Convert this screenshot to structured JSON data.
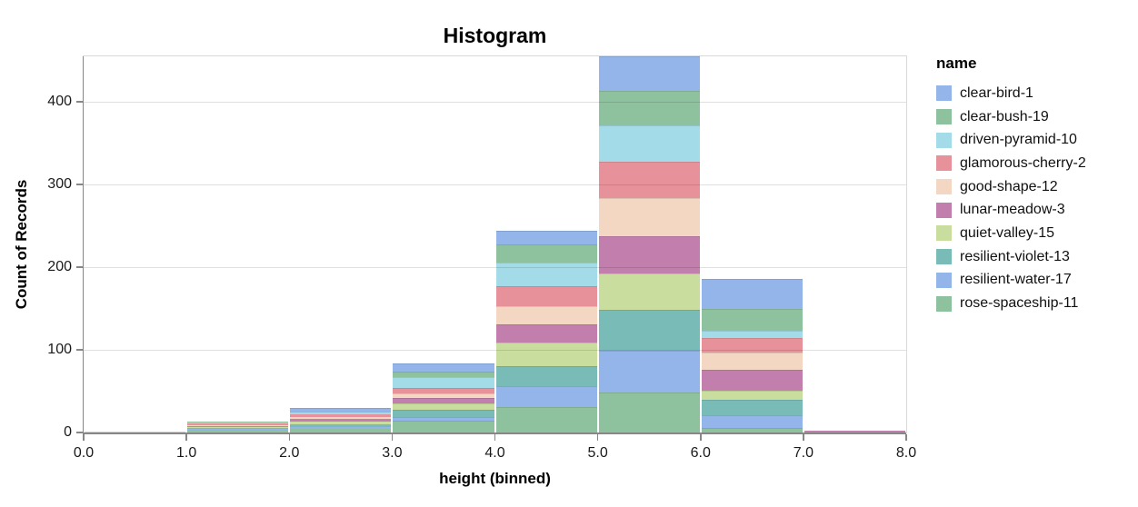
{
  "header": {
    "title": "Histogram"
  },
  "x_axis": {
    "title": "height (binned)",
    "tick_labels": [
      "0.0",
      "1.0",
      "2.0",
      "3.0",
      "4.0",
      "5.0",
      "6.0",
      "7.0",
      "8.0"
    ]
  },
  "y_axis": {
    "title": "Count of Records",
    "tick_values": [
      0,
      100,
      200,
      300,
      400
    ],
    "max": 455
  },
  "legend": {
    "title": "name"
  },
  "chart_data": {
    "type": "bar",
    "subtype": "stacked-histogram",
    "title": "Histogram",
    "xlabel": "height (binned)",
    "ylabel": "Count of Records",
    "xlim": [
      0,
      8
    ],
    "ylim": [
      0,
      455
    ],
    "grid": true,
    "legend_position": "right",
    "bin_edges": [
      0,
      1,
      2,
      3,
      4,
      5,
      6,
      7,
      8
    ],
    "stack_note": "first series renders at top of stack, last series at bottom",
    "series": [
      {
        "name": "clear-bird-1",
        "color": "#93b5e9",
        "counts": [
          0,
          0,
          5,
          9,
          17,
          42,
          36,
          0
        ]
      },
      {
        "name": "clear-bush-19",
        "color": "#8ec19d",
        "counts": [
          0,
          1,
          1,
          7,
          22,
          42,
          27,
          0
        ]
      },
      {
        "name": "driven-pyramid-10",
        "color": "#a3dce8",
        "counts": [
          0,
          1,
          2,
          13,
          28,
          43,
          9,
          0
        ]
      },
      {
        "name": "glamorous-cherry-2",
        "color": "#e7929a",
        "counts": [
          0,
          2,
          3,
          7,
          24,
          44,
          17,
          0
        ]
      },
      {
        "name": "good-shape-12",
        "color": "#f3d7c3",
        "counts": [
          0,
          1,
          3,
          5,
          22,
          47,
          21,
          0
        ]
      },
      {
        "name": "lunar-meadow-3",
        "color": "#c27ead",
        "counts": [
          0,
          1,
          3,
          7,
          22,
          45,
          25,
          2
        ]
      },
      {
        "name": "quiet-valley-15",
        "color": "#c9de9e",
        "counts": [
          1,
          1,
          3,
          7,
          29,
          44,
          11,
          0
        ]
      },
      {
        "name": "resilient-violet-13",
        "color": "#79bcb7",
        "counts": [
          0,
          2,
          3,
          9,
          24,
          49,
          19,
          0
        ]
      },
      {
        "name": "resilient-water-17",
        "color": "#93b5e9",
        "counts": [
          0,
          1,
          3,
          5,
          25,
          51,
          16,
          0
        ]
      },
      {
        "name": "rose-spaceship-11",
        "color": "#8ec19d",
        "counts": [
          0,
          3,
          4,
          14,
          31,
          48,
          5,
          0
        ]
      }
    ],
    "bin_totals": [
      1,
      13,
      30,
      83,
      244,
      455,
      186,
      2
    ]
  }
}
